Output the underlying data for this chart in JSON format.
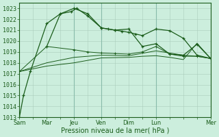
{
  "background_color": "#cceedd",
  "grid_color_minor": "#aaccbb",
  "grid_color_major": "#88bbaa",
  "line_color": "#1a5c1a",
  "xlabel": "Pression niveau de la mer( hPa )",
  "ylim": [
    1013,
    1023.5
  ],
  "yticks": [
    1013,
    1014,
    1015,
    1016,
    1017,
    1018,
    1019,
    1020,
    1021,
    1022,
    1023
  ],
  "x_tick_labels": [
    "Sam",
    "Mar",
    "Jeu",
    "Ven",
    "Dim",
    "Lun",
    "Mer"
  ],
  "x_tick_positions": [
    0,
    2,
    4,
    6,
    8,
    10,
    14
  ],
  "xlim": [
    0,
    14
  ],
  "line1_x": [
    0,
    0.3,
    0.8,
    2,
    3,
    3.8,
    4.2,
    5,
    6,
    6.5,
    7,
    7.5,
    8,
    8.5,
    9,
    10,
    11,
    12,
    13,
    14
  ],
  "line1_y": [
    1013.0,
    1015.0,
    1017.2,
    1021.6,
    1022.5,
    1022.7,
    1023.0,
    1022.3,
    1021.2,
    1021.1,
    1021.0,
    1020.9,
    1020.8,
    1020.65,
    1020.5,
    1021.1,
    1020.95,
    1020.25,
    1018.7,
    1018.4
  ],
  "line1_marker_x": [
    0,
    0.3,
    0.8,
    2,
    3,
    3.8,
    4.2,
    5,
    6,
    6.5,
    7,
    7.5,
    8,
    8.5,
    9,
    10,
    11,
    12,
    13,
    14
  ],
  "line1_marker_y": [
    1013.0,
    1015.0,
    1017.2,
    1021.6,
    1022.5,
    1022.7,
    1023.0,
    1022.3,
    1021.2,
    1021.1,
    1021.0,
    1020.9,
    1020.8,
    1020.65,
    1020.5,
    1021.1,
    1020.95,
    1020.25,
    1018.7,
    1018.4
  ],
  "line2_x": [
    2,
    3,
    4,
    5,
    6,
    7,
    8,
    9,
    10,
    11,
    12,
    13,
    14
  ],
  "line2_y": [
    1019.5,
    1022.5,
    1023.0,
    1022.5,
    1021.2,
    1021.0,
    1021.1,
    1019.5,
    1019.75,
    1018.8,
    1018.7,
    1019.7,
    1018.4
  ],
  "line2_marker_x": [
    2,
    3,
    4,
    5,
    6,
    7,
    8,
    9,
    10,
    11,
    12,
    13,
    14
  ],
  "line2_marker_y": [
    1019.5,
    1022.5,
    1023.0,
    1022.5,
    1021.2,
    1021.0,
    1021.1,
    1019.5,
    1019.75,
    1018.8,
    1018.7,
    1019.7,
    1018.4
  ],
  "line3_x": [
    0,
    2,
    4,
    5,
    6,
    7,
    8,
    9,
    10,
    11,
    12,
    13,
    14
  ],
  "line3_y": [
    1017.2,
    1019.5,
    1019.2,
    1019.0,
    1018.9,
    1018.85,
    1018.8,
    1019.0,
    1019.5,
    1018.8,
    1018.6,
    1018.6,
    1018.4
  ],
  "line4_x": [
    0,
    2,
    4,
    6,
    8,
    10,
    12,
    13,
    14
  ],
  "line4_y": [
    1017.2,
    1018.0,
    1018.5,
    1018.7,
    1018.65,
    1019.1,
    1018.7,
    1018.6,
    1018.4
  ],
  "line5_x": [
    0,
    2,
    4,
    6,
    8,
    9,
    10,
    11,
    12,
    13,
    14
  ],
  "line5_y": [
    1017.2,
    1017.7,
    1018.0,
    1018.45,
    1018.5,
    1018.6,
    1018.65,
    1018.5,
    1018.3,
    1019.8,
    1018.4
  ],
  "vlines_x": [
    4,
    6,
    10,
    14
  ],
  "xlabel_fontsize": 7,
  "tick_fontsize": 6
}
